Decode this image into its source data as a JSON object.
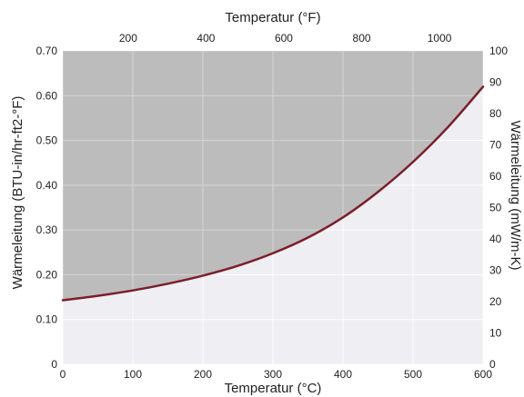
{
  "chart_data": {
    "type": "area",
    "x_bottom": {
      "label": "Temperatur (°C)",
      "range": [
        0,
        600
      ],
      "ticks": [
        "0",
        "100",
        "200",
        "300",
        "400",
        "500",
        "600"
      ]
    },
    "x_top": {
      "label": "Temperatur (°F)",
      "ticks": [
        "200",
        "400",
        "600",
        "800",
        "1000"
      ],
      "tick_values": [
        200,
        400,
        600,
        800,
        1000
      ]
    },
    "y_left": {
      "label": "Wärmeleitung (BTU-in/hr-ft2-°F)",
      "range": [
        0,
        0.7
      ],
      "ticks": [
        "0",
        "0.10",
        "0.20",
        "0.30",
        "0.40",
        "0.50",
        "0.60",
        "0.70"
      ]
    },
    "y_right": {
      "label": "Wärmeleitung (mW/m-K)",
      "range": [
        0,
        100
      ],
      "ticks": [
        "0",
        "10",
        "20",
        "30",
        "40",
        "50",
        "60",
        "70",
        "80",
        "90",
        "100"
      ]
    },
    "grid": true,
    "series": [
      {
        "x": [
          0,
          50,
          100,
          150,
          200,
          250,
          300,
          350,
          400,
          450,
          500,
          550,
          600
        ],
        "y": [
          0.143,
          0.153,
          0.165,
          0.18,
          0.198,
          0.22,
          0.248,
          0.283,
          0.328,
          0.385,
          0.452,
          0.53,
          0.62
        ],
        "line_color": "#7b1e2a"
      }
    ],
    "colors": {
      "above_fill": "#bdbcbd",
      "below_fill": "#eeeef3",
      "grid_above": "#d6d6d6",
      "grid_below": "#ffffff"
    }
  }
}
